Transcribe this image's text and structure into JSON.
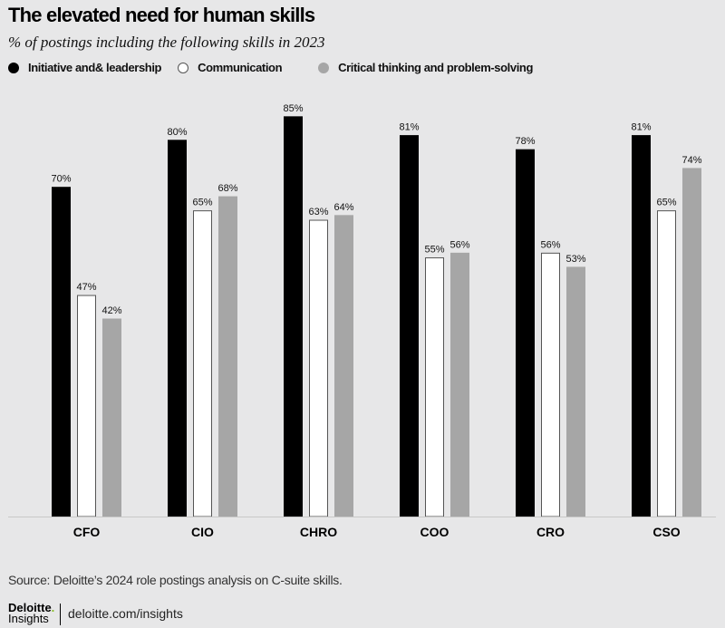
{
  "chart_data": {
    "type": "bar",
    "title": "The elevated need for human skills",
    "subtitle": "% of postings including the following skills in 2023",
    "categories": [
      "CFO",
      "CIO",
      "CHRO",
      "COO",
      "CRO",
      "CSO"
    ],
    "series": [
      {
        "name": "Initiative and& leadership",
        "color": "#000000",
        "values": [
          70,
          80,
          85,
          81,
          78,
          81
        ]
      },
      {
        "name": "Communication",
        "color": "#ffffff",
        "values": [
          47,
          65,
          63,
          55,
          56,
          65
        ]
      },
      {
        "name": "Critical thinking and problem-solving",
        "color": "#a6a6a6",
        "values": [
          42,
          68,
          64,
          56,
          53,
          74
        ]
      }
    ],
    "value_suffix": "%",
    "ylim": [
      0,
      100
    ],
    "grid": false,
    "legend": "top-left"
  },
  "footer": {
    "source": "Source: Deloitte’s 2024 role postings analysis on C-suite skills.",
    "logo_main": "Deloitte",
    "logo_dot": ".",
    "logo_sub": "Insights",
    "url": "deloitte.com/insights"
  }
}
